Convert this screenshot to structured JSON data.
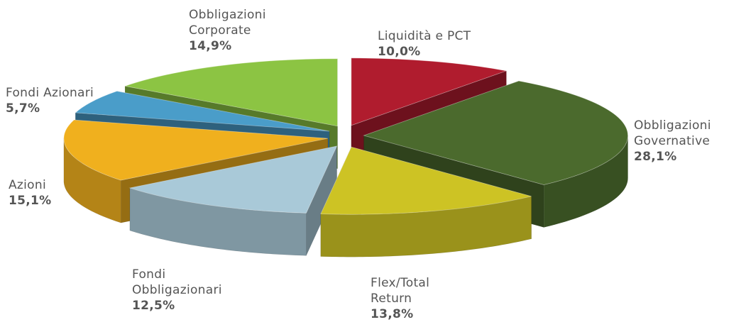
{
  "chart_data": {
    "type": "pie3d",
    "categories": [
      "Liquidità e PCT",
      "Obbligazioni Governative",
      "Flex/Total Return",
      "Fondi Obbligazionari",
      "Azioni",
      "Fondi Azionari",
      "Obbligazioni Corporate"
    ],
    "values": [
      10.0,
      28.1,
      13.8,
      12.5,
      15.1,
      5.7,
      14.9
    ],
    "value_labels": [
      "10,0%",
      "28,1%",
      "13,8%",
      "12,5%",
      "15,1%",
      "5,7%",
      "14,9%"
    ],
    "colors": [
      "#b01c2e",
      "#4b6a2d",
      "#cdc324",
      "#a9c9d8",
      "#f0b01e",
      "#4a9dc9",
      "#8cc443"
    ]
  }
}
